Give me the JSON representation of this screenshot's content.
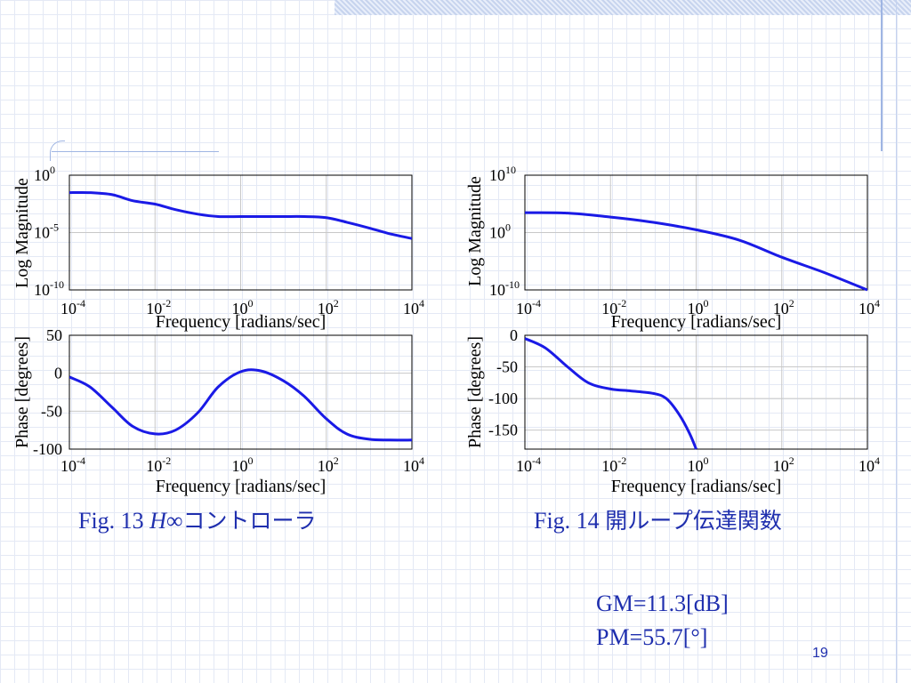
{
  "figure13": {
    "caption_prefix": "Fig. 13 ",
    "caption_italic": "H",
    "caption_symbol": "∞",
    "caption_title": "コントローラ"
  },
  "figure14": {
    "caption_prefix": "Fig. 14 ",
    "caption_title": "開ループ伝達関数"
  },
  "margins": {
    "gm": "GM=11.3[dB]",
    "pm": "PM=55.7[°]"
  },
  "page_number": "19",
  "colors": {
    "curve": "#1a1ae6",
    "text_accent": "#1f2fae",
    "grid": "#c8c8c8"
  },
  "chart_data": [
    {
      "id": "fig13-magnitude",
      "type": "line",
      "x_scale": "log",
      "y_scale": "log",
      "xlabel": "Frequency [radians/sec]",
      "ylabel": "Log Magnitude",
      "xlim": [
        0.0001,
        10000
      ],
      "ylim": [
        1e-10,
        1
      ],
      "x_ticks": [
        -4,
        -2,
        0,
        2,
        4
      ],
      "y_ticks": [
        0,
        -5,
        -10
      ],
      "grid": true,
      "series": [
        {
          "x": [
            0.0001,
            0.0003,
            0.001,
            0.003,
            0.01,
            0.03,
            0.1,
            0.3,
            1,
            3,
            10,
            30,
            100,
            300,
            1000,
            3000,
            10000
          ],
          "y": [
            0.03,
            0.03,
            0.02,
            0.006,
            0.003,
            0.001,
            0.0004,
            0.00025,
            0.00025,
            0.00025,
            0.00025,
            0.00025,
            0.0002,
            8e-05,
            2.5e-05,
            8e-06,
            3e-06
          ]
        }
      ]
    },
    {
      "id": "fig13-phase",
      "type": "line",
      "x_scale": "log",
      "xlabel": "Frequency [radians/sec]",
      "ylabel": "Phase [degrees]",
      "xlim": [
        0.0001,
        10000
      ],
      "ylim": [
        -100,
        50
      ],
      "x_ticks": [
        -4,
        -2,
        0,
        2,
        4
      ],
      "y_ticks": [
        50,
        0,
        -50,
        -100
      ],
      "grid": true,
      "series": [
        {
          "x": [
            0.0001,
            0.0003,
            0.001,
            0.003,
            0.01,
            0.03,
            0.1,
            0.3,
            1,
            3,
            10,
            30,
            100,
            300,
            1000,
            3000,
            10000
          ],
          "y": [
            -5,
            -18,
            -45,
            -70,
            -80,
            -75,
            -52,
            -18,
            2,
            3,
            -10,
            -30,
            -60,
            -80,
            -87,
            -88,
            -88
          ]
        }
      ]
    },
    {
      "id": "fig14-magnitude",
      "type": "line",
      "x_scale": "log",
      "y_scale": "log",
      "xlabel": "Frequency [radians/sec]",
      "ylabel": "Log Magnitude",
      "xlim": [
        0.0001,
        10000
      ],
      "ylim": [
        1e-10,
        10000000000.0
      ],
      "x_ticks": [
        -4,
        -2,
        0,
        2,
        4
      ],
      "y_ticks": [
        10,
        0,
        -10
      ],
      "grid": true,
      "series": [
        {
          "x": [
            0.0001,
            0.001,
            0.01,
            0.1,
            1,
            10,
            100,
            1000,
            10000
          ],
          "y": [
            3000,
            2500,
            500,
            60,
            3,
            0.05,
            5e-05,
            1e-07,
            1e-10
          ]
        }
      ]
    },
    {
      "id": "fig14-phase",
      "type": "line",
      "x_scale": "log",
      "xlabel": "Frequency [radians/sec]",
      "ylabel": "Phase [degrees]",
      "xlim": [
        0.0001,
        10000
      ],
      "ylim": [
        -180,
        0
      ],
      "x_ticks": [
        -4,
        -2,
        0,
        2,
        4
      ],
      "y_ticks": [
        0,
        -50,
        -100,
        -150
      ],
      "grid": true,
      "series": [
        {
          "x": [
            0.0001,
            0.0003,
            0.001,
            0.003,
            0.01,
            0.03,
            0.1,
            0.2,
            0.4,
            0.7,
            1
          ],
          "y": [
            -5,
            -20,
            -50,
            -75,
            -85,
            -88,
            -92,
            -100,
            -125,
            -155,
            -180
          ]
        }
      ]
    }
  ]
}
